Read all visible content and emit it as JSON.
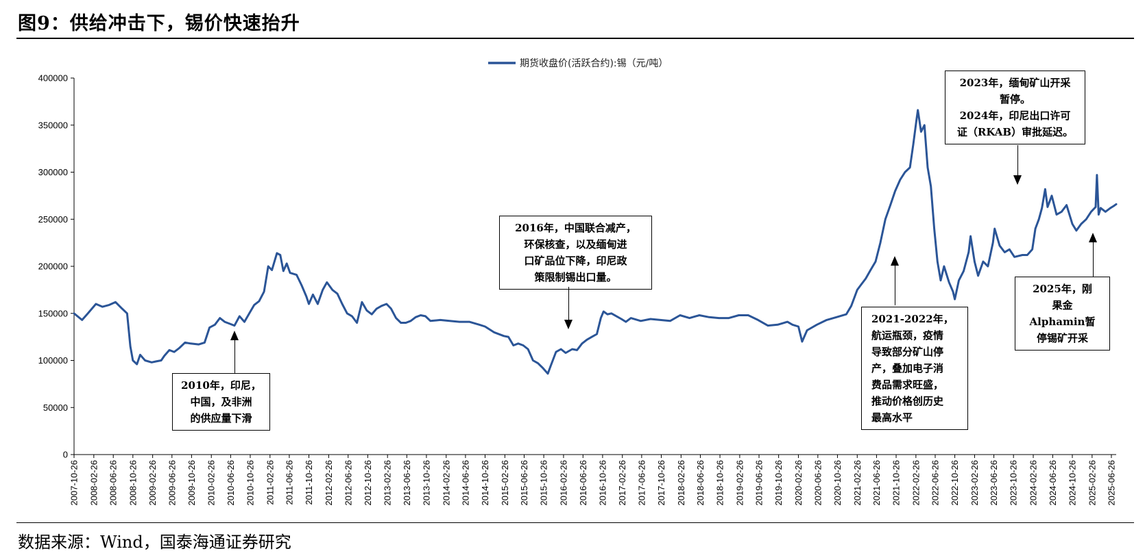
{
  "figure": {
    "title": "图9：供给冲击下，锡价快速抬升",
    "source": "数据来源：Wind，国泰海通证券研究"
  },
  "chart_data": {
    "type": "line",
    "legend": "期货收盘价(活跃合约):锡（元/吨）",
    "legend_position": "top-center",
    "color": "#2B5597",
    "ylim": [
      0,
      400000
    ],
    "yticks": [
      0,
      50000,
      100000,
      150000,
      200000,
      250000,
      300000,
      350000,
      400000
    ],
    "xlim": [
      "2007-10-26",
      "2025-07-26"
    ],
    "xticks": [
      "2007-10-26",
      "2008-02-26",
      "2008-06-26",
      "2008-10-26",
      "2009-02-26",
      "2009-06-26",
      "2009-10-26",
      "2010-02-26",
      "2010-06-26",
      "2010-10-26",
      "2011-02-26",
      "2011-06-26",
      "2011-10-26",
      "2012-02-26",
      "2012-06-26",
      "2012-10-26",
      "2013-02-26",
      "2013-06-26",
      "2013-10-26",
      "2014-02-26",
      "2014-06-26",
      "2014-10-26",
      "2015-02-26",
      "2015-06-26",
      "2015-10-26",
      "2016-02-26",
      "2016-06-26",
      "2016-10-26",
      "2017-02-26",
      "2017-06-26",
      "2017-10-26",
      "2018-02-26",
      "2018-06-26",
      "2018-10-26",
      "2019-02-26",
      "2019-06-26",
      "2019-10-26",
      "2020-02-26",
      "2020-06-26",
      "2020-10-26",
      "2021-02-26",
      "2021-06-26",
      "2021-10-26",
      "2022-02-26",
      "2022-06-26",
      "2022-10-26",
      "2023-02-26",
      "2023-06-26",
      "2023-10-26",
      "2024-02-26",
      "2024-06-26",
      "2024-10-26",
      "2025-02-26",
      "2025-06-26"
    ],
    "series": [
      {
        "name": "期货收盘价(活跃合约):锡（元/吨）",
        "points": [
          [
            "2007-10-26",
            150000
          ],
          [
            "2007-12-15",
            143000
          ],
          [
            "2008-01-20",
            150000
          ],
          [
            "2008-03-10",
            160000
          ],
          [
            "2008-04-20",
            157000
          ],
          [
            "2008-06-01",
            159000
          ],
          [
            "2008-07-10",
            162000
          ],
          [
            "2008-08-20",
            155000
          ],
          [
            "2008-09-20",
            150000
          ],
          [
            "2008-10-10",
            115000
          ],
          [
            "2008-10-26",
            100000
          ],
          [
            "2008-11-20",
            96000
          ],
          [
            "2008-12-10",
            106000
          ],
          [
            "2009-01-10",
            100000
          ],
          [
            "2009-02-20",
            98000
          ],
          [
            "2009-03-20",
            99000
          ],
          [
            "2009-04-20",
            100000
          ],
          [
            "2009-05-10",
            105000
          ],
          [
            "2009-06-10",
            111000
          ],
          [
            "2009-07-10",
            109000
          ],
          [
            "2009-08-10",
            113000
          ],
          [
            "2009-09-15",
            119000
          ],
          [
            "2009-10-20",
            118000
          ],
          [
            "2009-12-10",
            117000
          ],
          [
            "2010-01-15",
            119000
          ],
          [
            "2010-02-15",
            135000
          ],
          [
            "2010-03-20",
            138000
          ],
          [
            "2010-04-20",
            145000
          ],
          [
            "2010-05-20",
            141000
          ],
          [
            "2010-06-20",
            139000
          ],
          [
            "2010-07-20",
            137000
          ],
          [
            "2010-08-20",
            147000
          ],
          [
            "2010-09-20",
            141000
          ],
          [
            "2010-10-20",
            150000
          ],
          [
            "2010-11-20",
            159000
          ],
          [
            "2010-12-20",
            163000
          ],
          [
            "2011-01-20",
            173000
          ],
          [
            "2011-02-15",
            200000
          ],
          [
            "2011-03-10",
            196000
          ],
          [
            "2011-04-10",
            214000
          ],
          [
            "2011-05-01",
            212000
          ],
          [
            "2011-05-20",
            195000
          ],
          [
            "2011-06-10",
            203000
          ],
          [
            "2011-07-01",
            193000
          ],
          [
            "2011-08-10",
            191000
          ],
          [
            "2011-09-10",
            180000
          ],
          [
            "2011-10-10",
            168000
          ],
          [
            "2011-10-26",
            160000
          ],
          [
            "2011-11-20",
            170000
          ],
          [
            "2011-12-20",
            160000
          ],
          [
            "2012-01-20",
            175000
          ],
          [
            "2012-02-15",
            183000
          ],
          [
            "2012-03-20",
            175000
          ],
          [
            "2012-04-20",
            171000
          ],
          [
            "2012-05-20",
            160000
          ],
          [
            "2012-06-20",
            150000
          ],
          [
            "2012-07-20",
            147000
          ],
          [
            "2012-08-20",
            140000
          ],
          [
            "2012-09-20",
            162000
          ],
          [
            "2012-10-20",
            153000
          ],
          [
            "2012-11-20",
            149000
          ],
          [
            "2012-12-20",
            155000
          ],
          [
            "2013-01-20",
            158000
          ],
          [
            "2013-02-20",
            160000
          ],
          [
            "2013-03-20",
            155000
          ],
          [
            "2013-04-20",
            145000
          ],
          [
            "2013-05-20",
            140000
          ],
          [
            "2013-06-20",
            140000
          ],
          [
            "2013-07-20",
            142000
          ],
          [
            "2013-08-20",
            146000
          ],
          [
            "2013-09-20",
            148000
          ],
          [
            "2013-10-20",
            147000
          ],
          [
            "2013-11-20",
            142000
          ],
          [
            "2014-01-20",
            143000
          ],
          [
            "2014-03-20",
            142000
          ],
          [
            "2014-05-20",
            141000
          ],
          [
            "2014-07-20",
            141000
          ],
          [
            "2014-09-20",
            138000
          ],
          [
            "2014-10-26",
            136000
          ],
          [
            "2014-12-20",
            130000
          ],
          [
            "2015-02-20",
            126000
          ],
          [
            "2015-03-20",
            125000
          ],
          [
            "2015-04-20",
            116000
          ],
          [
            "2015-05-20",
            118000
          ],
          [
            "2015-06-20",
            116000
          ],
          [
            "2015-07-20",
            112000
          ],
          [
            "2015-08-20",
            100000
          ],
          [
            "2015-09-20",
            97000
          ],
          [
            "2015-10-20",
            92000
          ],
          [
            "2015-11-20",
            86000
          ],
          [
            "2015-12-10",
            95000
          ],
          [
            "2016-01-10",
            109000
          ],
          [
            "2016-02-10",
            112000
          ],
          [
            "2016-03-10",
            108000
          ],
          [
            "2016-04-20",
            112000
          ],
          [
            "2016-05-20",
            111000
          ],
          [
            "2016-06-20",
            118000
          ],
          [
            "2016-07-20",
            122000
          ],
          [
            "2016-08-20",
            125000
          ],
          [
            "2016-09-20",
            128000
          ],
          [
            "2016-10-15",
            145000
          ],
          [
            "2016-11-01",
            152000
          ],
          [
            "2016-11-25",
            149000
          ],
          [
            "2016-12-20",
            150000
          ],
          [
            "2017-01-20",
            147000
          ],
          [
            "2017-02-20",
            144000
          ],
          [
            "2017-03-20",
            141000
          ],
          [
            "2017-04-20",
            145000
          ],
          [
            "2017-06-20",
            142000
          ],
          [
            "2017-08-20",
            144000
          ],
          [
            "2017-10-20",
            143000
          ],
          [
            "2017-12-20",
            142000
          ],
          [
            "2018-02-20",
            148000
          ],
          [
            "2018-04-20",
            145000
          ],
          [
            "2018-06-20",
            148000
          ],
          [
            "2018-08-20",
            146000
          ],
          [
            "2018-10-20",
            145000
          ],
          [
            "2018-12-20",
            145000
          ],
          [
            "2019-02-20",
            148000
          ],
          [
            "2019-04-20",
            148000
          ],
          [
            "2019-06-20",
            143000
          ],
          [
            "2019-08-20",
            137000
          ],
          [
            "2019-10-20",
            138000
          ],
          [
            "2019-12-20",
            141000
          ],
          [
            "2020-01-20",
            138000
          ],
          [
            "2020-02-26",
            136000
          ],
          [
            "2020-03-20",
            120000
          ],
          [
            "2020-04-20",
            132000
          ],
          [
            "2020-06-20",
            138000
          ],
          [
            "2020-08-20",
            143000
          ],
          [
            "2020-10-20",
            146000
          ],
          [
            "2020-12-20",
            149000
          ],
          [
            "2021-01-20",
            158000
          ],
          [
            "2021-02-26",
            175000
          ],
          [
            "2021-03-20",
            180000
          ],
          [
            "2021-04-20",
            187000
          ],
          [
            "2021-05-20",
            196000
          ],
          [
            "2021-06-20",
            205000
          ],
          [
            "2021-07-20",
            225000
          ],
          [
            "2021-08-20",
            250000
          ],
          [
            "2021-09-20",
            265000
          ],
          [
            "2021-10-20",
            280000
          ],
          [
            "2021-11-20",
            292000
          ],
          [
            "2021-12-20",
            300000
          ],
          [
            "2022-01-20",
            305000
          ],
          [
            "2022-02-10",
            330000
          ],
          [
            "2022-03-01",
            355000
          ],
          [
            "2022-03-10",
            366000
          ],
          [
            "2022-03-30",
            343000
          ],
          [
            "2022-04-20",
            350000
          ],
          [
            "2022-05-10",
            305000
          ],
          [
            "2022-05-30",
            285000
          ],
          [
            "2022-06-20",
            240000
          ],
          [
            "2022-07-10",
            205000
          ],
          [
            "2022-07-30",
            185000
          ],
          [
            "2022-08-20",
            200000
          ],
          [
            "2022-09-20",
            183000
          ],
          [
            "2022-10-15",
            173000
          ],
          [
            "2022-10-26",
            165000
          ],
          [
            "2022-11-20",
            185000
          ],
          [
            "2022-12-20",
            195000
          ],
          [
            "2023-01-20",
            215000
          ],
          [
            "2023-02-01",
            232000
          ],
          [
            "2023-02-26",
            205000
          ],
          [
            "2023-03-20",
            190000
          ],
          [
            "2023-04-20",
            205000
          ],
          [
            "2023-05-20",
            200000
          ],
          [
            "2023-06-20",
            225000
          ],
          [
            "2023-07-01",
            240000
          ],
          [
            "2023-08-01",
            222000
          ],
          [
            "2023-09-01",
            215000
          ],
          [
            "2023-10-01",
            218000
          ],
          [
            "2023-11-01",
            210000
          ],
          [
            "2023-12-20",
            212000
          ],
          [
            "2024-01-20",
            212000
          ],
          [
            "2024-02-20",
            218000
          ],
          [
            "2024-03-10",
            240000
          ],
          [
            "2024-04-01",
            250000
          ],
          [
            "2024-04-20",
            262000
          ],
          [
            "2024-05-10",
            282000
          ],
          [
            "2024-05-25",
            263000
          ],
          [
            "2024-06-20",
            275000
          ],
          [
            "2024-07-20",
            255000
          ],
          [
            "2024-08-20",
            258000
          ],
          [
            "2024-09-20",
            265000
          ],
          [
            "2024-10-26",
            245000
          ],
          [
            "2024-11-20",
            238000
          ],
          [
            "2024-12-20",
            245000
          ],
          [
            "2025-01-20",
            250000
          ],
          [
            "2025-02-20",
            258000
          ],
          [
            "2025-03-20",
            263000
          ],
          [
            "2025-03-28",
            297000
          ],
          [
            "2025-04-08",
            255000
          ],
          [
            "2025-04-20",
            262000
          ],
          [
            "2025-05-20",
            258000
          ],
          [
            "2025-06-20",
            262000
          ],
          [
            "2025-07-10",
            264000
          ],
          [
            "2025-07-26",
            266000
          ]
        ]
      }
    ],
    "annotations": [
      "2010年，印尼，|中国，及非洲|的供应量下滑",
      "2016年，中国联合减产，|环保核查，以及缅甸进|口矿品位下降，印尼政|策限制锡出口量。",
      "2021-2022年，|航运瓶颈，疫情|导致部分矿山停|产，叠加电子消|费品需求旺盛，|推动价格创历史|最高水平",
      "2023年，缅甸矿山开采|暂停。|2024年，印尼出口许可|证（RKAB）审批延迟。",
      "2025年，刚|果金|Alphamin暂|停锡矿开采"
    ]
  }
}
